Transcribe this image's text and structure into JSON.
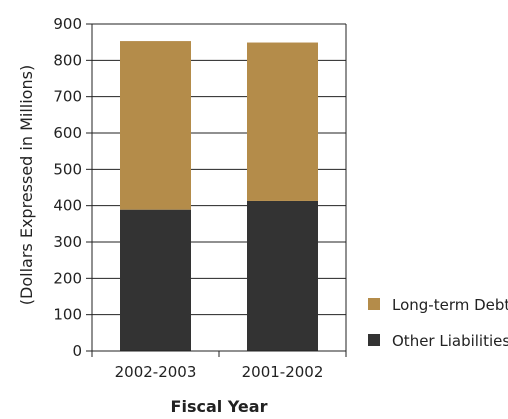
{
  "chart_data": {
    "type": "bar",
    "stacked": true,
    "categories": [
      "2002-2003",
      "2001-2002"
    ],
    "series": [
      {
        "name": "Other Liabilities",
        "values": [
          389,
          413
        ],
        "color": "#333333"
      },
      {
        "name": "Long-term Debt",
        "values": [
          464,
          436
        ],
        "color": "#b48c4a"
      }
    ],
    "xlabel": "Fiscal Year",
    "ylabel": "(Dollars Expressed in Millions)",
    "ylim": [
      0,
      900
    ],
    "yticks": [
      0,
      100,
      200,
      300,
      400,
      500,
      600,
      700,
      800,
      900
    ],
    "grid": true,
    "legend_position": "bottom-right",
    "legend_order": [
      "Long-term Debt",
      "Other Liabilities"
    ]
  }
}
